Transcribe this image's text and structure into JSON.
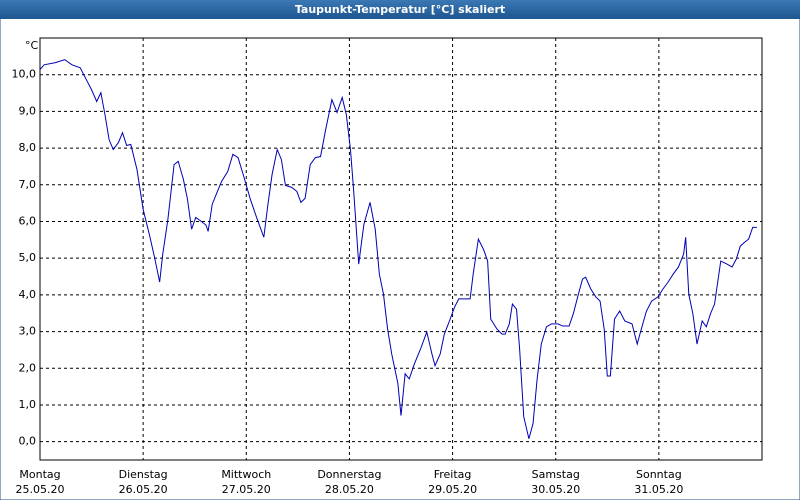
{
  "chart_data": {
    "type": "line",
    "title": "Taupunkt-Temperatur [°C] skaliert",
    "ylabel": "°C",
    "x": [
      0,
      0.04,
      0.15,
      0.24,
      0.31,
      0.39,
      0.45,
      0.5,
      0.55,
      0.59,
      0.63,
      0.67,
      0.71,
      0.76,
      0.8,
      0.84,
      0.88,
      0.94,
      1.0,
      1.06,
      1.11,
      1.16,
      1.19,
      1.24,
      1.3,
      1.34,
      1.39,
      1.43,
      1.47,
      1.51,
      1.56,
      1.61,
      1.63,
      1.67,
      1.72,
      1.76,
      1.82,
      1.87,
      1.92,
      1.97,
      2.04,
      2.1,
      2.17,
      2.21,
      2.25,
      2.3,
      2.34,
      2.38,
      2.44,
      2.49,
      2.53,
      2.57,
      2.62,
      2.67,
      2.72,
      2.77,
      2.83,
      2.88,
      2.93,
      2.97,
      3.01,
      3.04,
      3.09,
      3.14,
      3.2,
      3.25,
      3.29,
      3.33,
      3.37,
      3.41,
      3.47,
      3.5,
      3.54,
      3.58,
      3.63,
      3.69,
      3.75,
      3.8,
      3.83,
      3.88,
      3.92,
      3.97,
      4.02,
      4.06,
      4.11,
      4.17,
      4.2,
      4.25,
      4.3,
      4.34,
      4.37,
      4.43,
      4.48,
      4.51,
      4.55,
      4.58,
      4.62,
      4.65,
      4.69,
      4.74,
      4.78,
      4.82,
      4.86,
      4.91,
      4.96,
      5.02,
      5.07,
      5.13,
      5.17,
      5.22,
      5.26,
      5.29,
      5.34,
      5.39,
      5.43,
      5.47,
      5.5,
      5.53,
      5.57,
      5.62,
      5.67,
      5.74,
      5.79,
      5.83,
      5.88,
      5.93,
      5.99,
      6.04,
      6.09,
      6.14,
      6.19,
      6.24,
      6.26,
      6.29,
      6.33,
      6.37,
      6.42,
      6.46,
      6.5,
      6.54,
      6.6,
      6.66,
      6.71,
      6.75,
      6.79,
      6.83,
      6.87,
      6.91,
      6.95
    ],
    "series": [
      {
        "color": "#0000b4",
        "values": [
          10.14,
          10.27,
          10.33,
          10.41,
          10.27,
          10.19,
          9.86,
          9.59,
          9.27,
          9.51,
          8.91,
          8.23,
          7.96,
          8.15,
          8.42,
          8.07,
          8.1,
          7.42,
          6.33,
          5.65,
          5.03,
          4.35,
          5.11,
          6.06,
          7.55,
          7.64,
          7.15,
          6.6,
          5.79,
          6.11,
          6.01,
          5.9,
          5.73,
          6.47,
          6.82,
          7.09,
          7.36,
          7.83,
          7.74,
          7.28,
          6.6,
          6.11,
          5.57,
          6.47,
          7.28,
          7.96,
          7.69,
          6.98,
          6.93,
          6.82,
          6.52,
          6.63,
          7.55,
          7.74,
          7.77,
          8.51,
          9.32,
          8.97,
          9.38,
          8.91,
          7.96,
          6.88,
          4.84,
          5.92,
          6.52,
          5.79,
          4.57,
          4.02,
          3.07,
          2.39,
          1.58,
          0.71,
          1.85,
          1.71,
          2.12,
          2.53,
          2.99,
          2.39,
          2.07,
          2.39,
          2.93,
          3.29,
          3.67,
          3.89,
          3.89,
          3.89,
          4.57,
          5.52,
          5.24,
          4.92,
          3.34,
          3.07,
          2.93,
          2.93,
          3.21,
          3.75,
          3.61,
          2.53,
          0.68,
          0.08,
          0.49,
          1.71,
          2.66,
          3.13,
          3.21,
          3.21,
          3.15,
          3.15,
          3.48,
          4.02,
          4.43,
          4.48,
          4.16,
          3.94,
          3.83,
          3.07,
          1.79,
          1.79,
          3.34,
          3.56,
          3.29,
          3.21,
          2.66,
          3.07,
          3.56,
          3.83,
          3.94,
          4.16,
          4.35,
          4.57,
          4.76,
          5.11,
          5.57,
          4.02,
          3.48,
          2.66,
          3.29,
          3.13,
          3.48,
          3.75,
          4.92,
          4.84,
          4.76,
          4.97,
          5.33,
          5.43,
          5.52,
          5.84,
          5.84
        ]
      }
    ],
    "xlim": [
      0,
      7
    ],
    "xticks": [
      {
        "value": 0,
        "label": [
          "Montag",
          "25.05.20"
        ]
      },
      {
        "value": 1,
        "label": [
          "Dienstag",
          "26.05.20"
        ]
      },
      {
        "value": 2,
        "label": [
          "Mittwoch",
          "27.05.20"
        ]
      },
      {
        "value": 3,
        "label": [
          "Donnerstag",
          "28.05.20"
        ]
      },
      {
        "value": 4,
        "label": [
          "Freitag",
          "29.05.20"
        ]
      },
      {
        "value": 5,
        "label": [
          "Samstag",
          "30.05.20"
        ]
      },
      {
        "value": 6,
        "label": [
          "Sonntag",
          "31.05.20"
        ]
      }
    ],
    "ylim": [
      -0.5,
      11
    ],
    "yticks": [
      {
        "value": 0,
        "label": "0,0"
      },
      {
        "value": 1,
        "label": "1,0"
      },
      {
        "value": 2,
        "label": "2,0"
      },
      {
        "value": 3,
        "label": "3,0"
      },
      {
        "value": 4,
        "label": "4,0"
      },
      {
        "value": 5,
        "label": "5,0"
      },
      {
        "value": 6,
        "label": "6,0"
      },
      {
        "value": 7,
        "label": "7,0"
      },
      {
        "value": 8,
        "label": "8,0"
      },
      {
        "value": 9,
        "label": "9,0"
      },
      {
        "value": 10,
        "label": "10,0"
      }
    ],
    "grid": true
  }
}
